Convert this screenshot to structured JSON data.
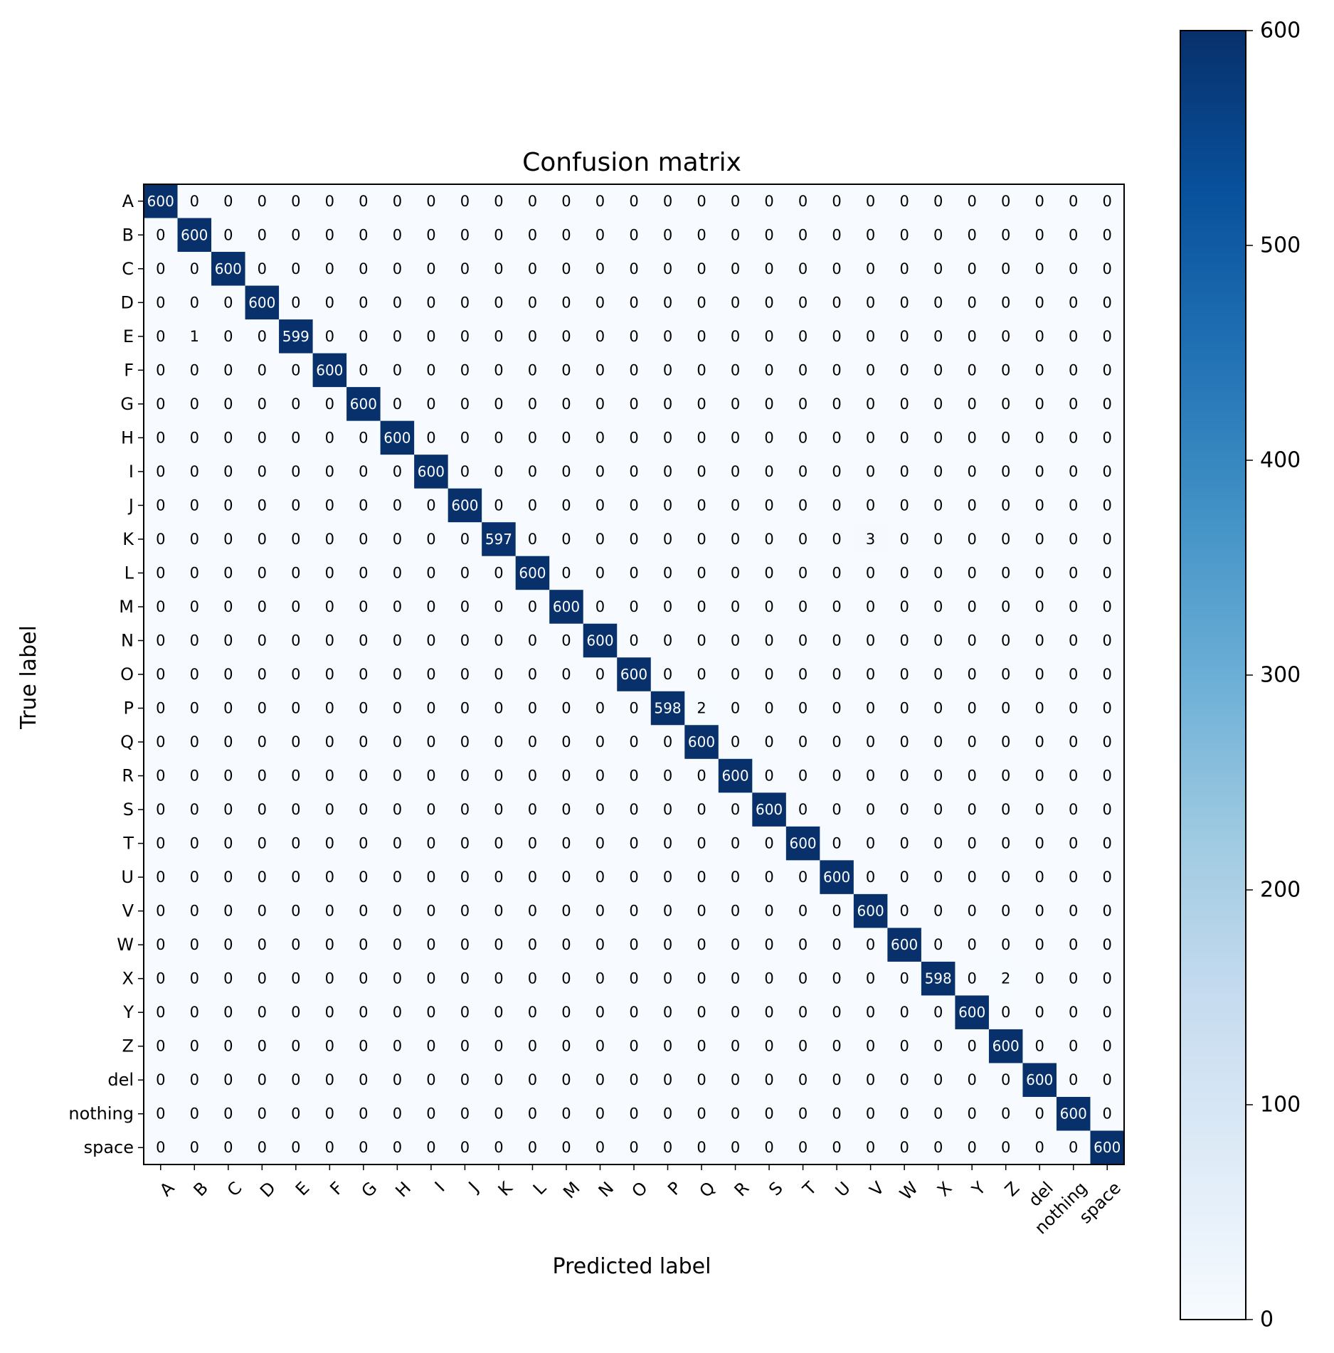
{
  "chart_data": {
    "type": "heatmap",
    "title": "Confusion matrix",
    "xlabel": "Predicted label",
    "ylabel": "True label",
    "labels": [
      "A",
      "B",
      "C",
      "D",
      "E",
      "F",
      "G",
      "H",
      "I",
      "J",
      "K",
      "L",
      "M",
      "N",
      "O",
      "P",
      "Q",
      "R",
      "S",
      "T",
      "U",
      "V",
      "W",
      "X",
      "Y",
      "Z",
      "del",
      "nothing",
      "space"
    ],
    "diagonal": [
      600,
      600,
      600,
      600,
      599,
      600,
      600,
      600,
      600,
      600,
      597,
      600,
      600,
      600,
      600,
      598,
      600,
      600,
      600,
      600,
      600,
      600,
      600,
      598,
      600,
      600,
      600,
      600,
      600
    ],
    "off_diagonal": [
      {
        "row": "E",
        "col": "B",
        "value": 1
      },
      {
        "row": "K",
        "col": "V",
        "value": 3
      },
      {
        "row": "P",
        "col": "Q",
        "value": 2
      },
      {
        "row": "X",
        "col": "Z",
        "value": 2
      }
    ],
    "default_value": 0,
    "colorbar": {
      "colormap": "Blues",
      "range": [
        0,
        600
      ],
      "ticks": [
        0,
        100,
        200,
        300,
        400,
        500,
        600
      ]
    },
    "colors": {
      "low": "#f7fbff",
      "high": "#08306b",
      "text_dark": "#000000",
      "text_light": "#ffffff"
    }
  }
}
